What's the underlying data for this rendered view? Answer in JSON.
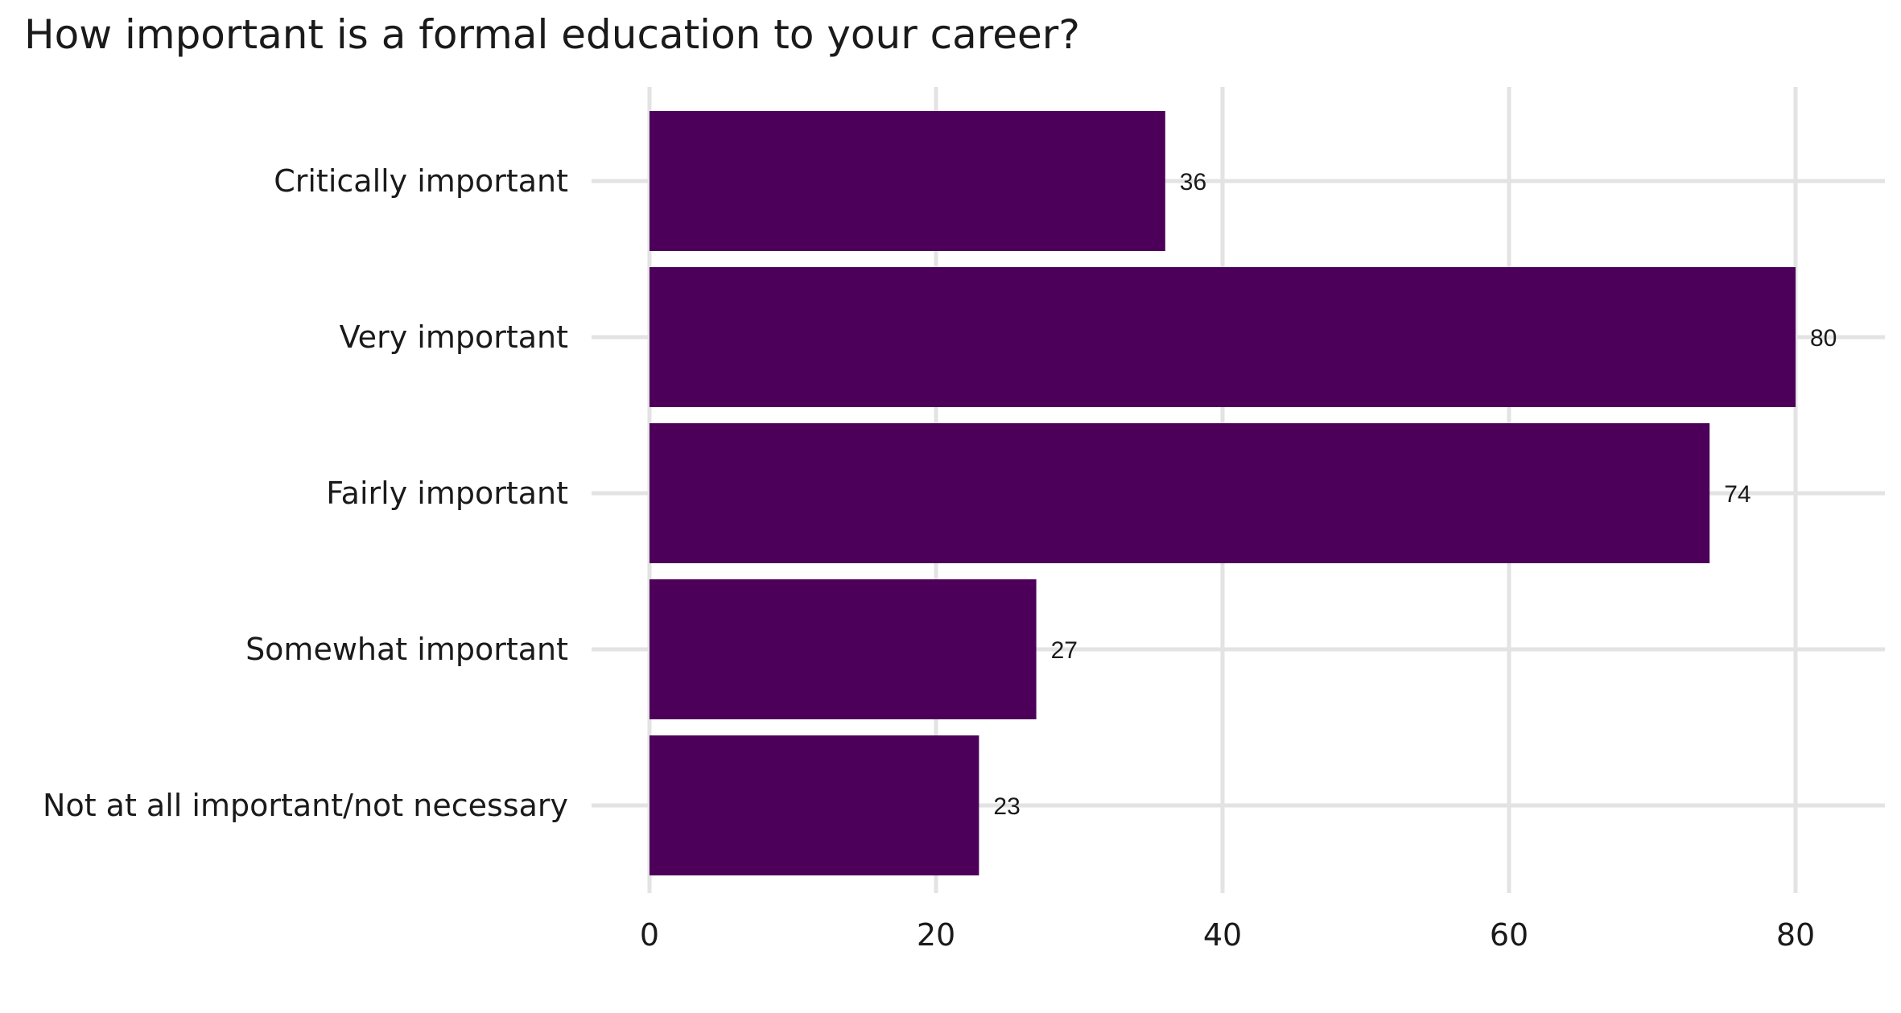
{
  "chart_data": {
    "type": "bar",
    "orientation": "horizontal",
    "title": "How important is a formal education to your career?",
    "xlabel": "",
    "ylabel": "",
    "categories": [
      "Critically important",
      "Very important",
      "Fairly important",
      "Somewhat important",
      "Not at all important/not necessary"
    ],
    "values": [
      36,
      80,
      74,
      27,
      23
    ],
    "data_labels": [
      "36",
      "80",
      "74",
      "27",
      "23"
    ],
    "xlim": [
      0,
      85
    ],
    "x_ticks": [
      0,
      20,
      40,
      60,
      80
    ],
    "x_tick_labels": [
      "0",
      "20",
      "40",
      "60",
      "80"
    ],
    "grid": true,
    "legend": "none",
    "bar_color": "#4d005a"
  }
}
